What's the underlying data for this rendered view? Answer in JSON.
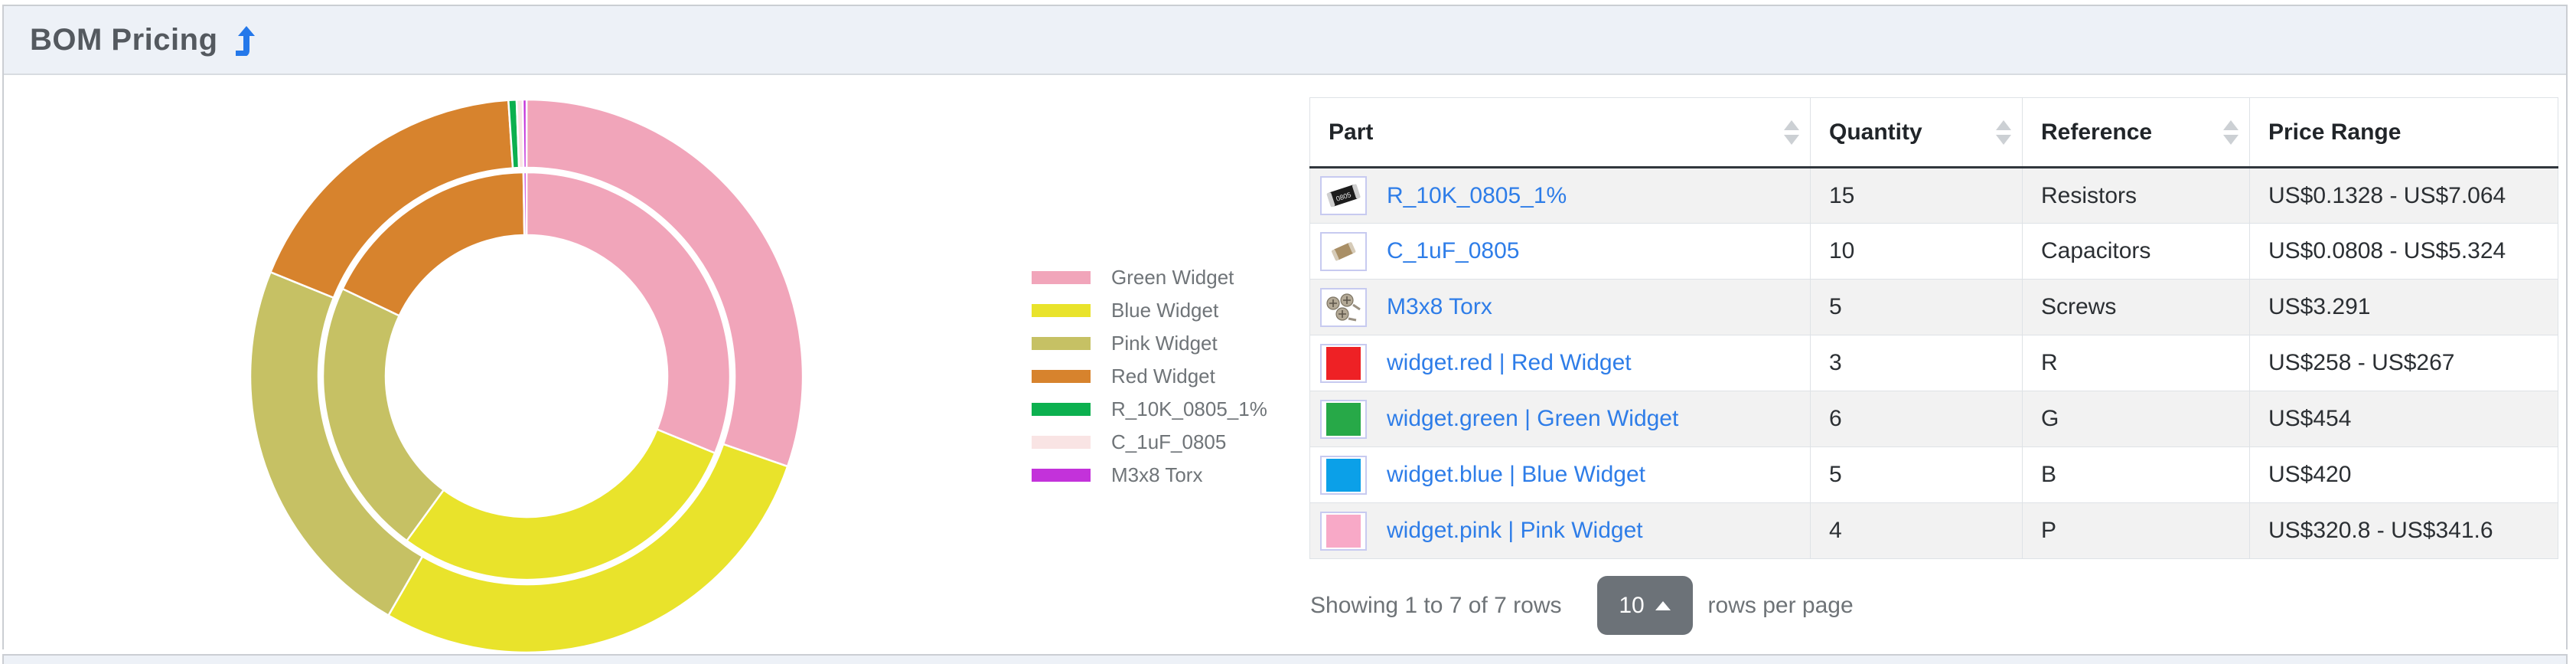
{
  "card": {
    "title": "BOM Pricing"
  },
  "icons": {
    "title_icon": "turn-up-arrow",
    "sort_icon": "up-down-arrows",
    "page_size_caret": "caret-up"
  },
  "chart_data": {
    "type": "donut",
    "subtype": "two-ring-nested",
    "labels": [
      "Green Widget",
      "Blue Widget",
      "Pink Widget",
      "Red Widget",
      "R_10K_0805_1%",
      "C_1uF_0805",
      "M3x8 Torx"
    ],
    "colors": [
      "#f1a5ba",
      "#e9e32b",
      "#c6c164",
      "#d7832d",
      "#0cb04f",
      "#f9e4e4",
      "#c332da"
    ],
    "rings": [
      {
        "name": "outer-max-price",
        "r_inner": 272,
        "r_outer": 361,
        "values": [
          454,
          420,
          341.6,
          267,
          7.064,
          5.324,
          3.291
        ]
      },
      {
        "name": "inner-min-price",
        "r_inner": 184,
        "r_outer": 266,
        "values": [
          454,
          420,
          320.8,
          258,
          0.1328,
          0.0808,
          3.291
        ]
      }
    ],
    "start_angle_deg": 0,
    "direction": "clockwise",
    "legend_position": "right",
    "separator_color": "#ffffff"
  },
  "table": {
    "columns": [
      {
        "label": "Part",
        "sortable": true
      },
      {
        "label": "Quantity",
        "sortable": true
      },
      {
        "label": "Reference",
        "sortable": true
      },
      {
        "label": "Price Range",
        "sortable": false
      }
    ],
    "rows": [
      {
        "thumb": "resistor",
        "thumb_color": "",
        "part": "R_10K_0805_1%",
        "quantity": "15",
        "reference": "Resistors",
        "price_range": "US$0.1328 - US$7.064"
      },
      {
        "thumb": "capacitor",
        "thumb_color": "",
        "part": "C_1uF_0805",
        "quantity": "10",
        "reference": "Capacitors",
        "price_range": "US$0.0808 - US$5.324"
      },
      {
        "thumb": "screws",
        "thumb_color": "",
        "part": "M3x8 Torx",
        "quantity": "5",
        "reference": "Screws",
        "price_range": "US$3.291"
      },
      {
        "thumb": "swatch",
        "thumb_color": "#ee2125",
        "part": "widget.red | Red Widget",
        "quantity": "3",
        "reference": "R",
        "price_range": "US$258 - US$267"
      },
      {
        "thumb": "swatch",
        "thumb_color": "#27a948",
        "part": "widget.green | Green Widget",
        "quantity": "6",
        "reference": "G",
        "price_range": "US$454"
      },
      {
        "thumb": "swatch",
        "thumb_color": "#0ba0e8",
        "part": "widget.blue | Blue Widget",
        "quantity": "5",
        "reference": "B",
        "price_range": "US$420"
      },
      {
        "thumb": "swatch",
        "thumb_color": "#f8a9c7",
        "part": "widget.pink | Pink Widget",
        "quantity": "4",
        "reference": "P",
        "price_range": "US$320.8 - US$341.6"
      }
    ]
  },
  "pagination": {
    "summary": "Showing 1 to 7 of 7 rows",
    "page_size": "10",
    "suffix": "rows per page"
  }
}
